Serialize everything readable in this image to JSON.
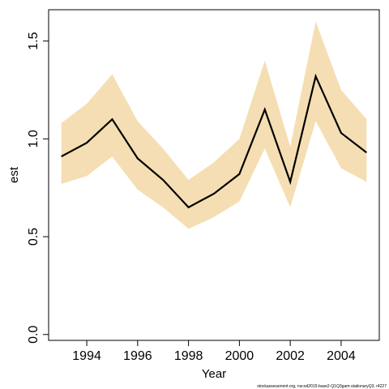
{
  "chart_data": {
    "type": "line",
    "xlabel": "Year",
    "ylabel": "est",
    "xlim": [
      1992.5,
      2005.5
    ],
    "ylim": [
      -0.03,
      1.66
    ],
    "x_ticks": [
      1994,
      1996,
      1998,
      2000,
      2002,
      2004
    ],
    "y_ticks": [
      0.0,
      0.5,
      1.0,
      1.5
    ],
    "y_tick_labels": [
      "0.0",
      "0.5",
      "1.0",
      "1.5"
    ],
    "grid": false,
    "line_color": "#000000",
    "band_color": "#f5deb3",
    "series": [
      {
        "x": [
          1993,
          1994,
          1995,
          1996,
          1997,
          1998,
          1999,
          2000,
          2001,
          2002,
          2003,
          2004,
          2005
        ],
        "values": [
          0.91,
          0.98,
          1.1,
          0.9,
          0.79,
          0.65,
          0.72,
          0.82,
          1.15,
          0.78,
          1.32,
          1.03,
          0.93
        ],
        "lower": [
          0.77,
          0.81,
          0.91,
          0.74,
          0.65,
          0.54,
          0.6,
          0.68,
          0.95,
          0.65,
          1.09,
          0.85,
          0.78
        ],
        "upper": [
          1.08,
          1.18,
          1.33,
          1.09,
          0.95,
          0.79,
          0.88,
          1.0,
          1.4,
          0.96,
          1.6,
          1.25,
          1.1
        ]
      }
    ]
  },
  "footer": "stockassessment.org, nscod2015-base2-Q1Q3gam-stationaryQ3, r4227"
}
